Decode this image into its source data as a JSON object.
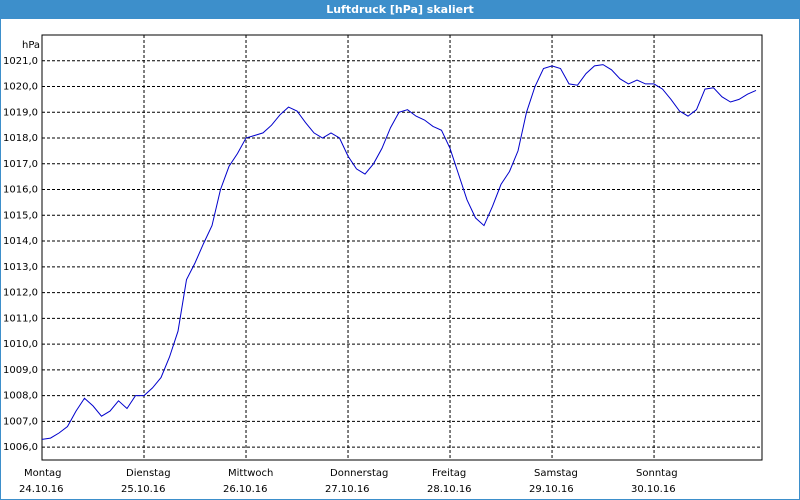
{
  "chart_data": {
    "type": "line",
    "title": "Luftdruck [hPa] skaliert",
    "y_label": "hPa",
    "x": [
      0,
      2,
      4,
      6,
      8,
      10,
      12,
      14,
      16,
      18,
      20,
      22,
      24,
      26,
      28,
      30,
      32,
      34,
      36,
      38,
      40,
      42,
      44,
      46,
      48,
      50,
      52,
      54,
      56,
      58,
      60,
      62,
      64,
      66,
      68,
      70,
      72,
      74,
      76,
      78,
      80,
      82,
      84,
      86,
      88,
      90,
      92,
      94,
      96,
      98,
      100,
      102,
      104,
      106,
      108,
      110,
      112,
      114,
      116,
      118,
      120,
      122,
      124,
      126,
      128,
      130,
      132,
      134,
      136,
      138,
      140,
      142,
      144,
      146,
      148,
      150,
      152,
      154,
      156,
      158,
      160,
      162,
      164,
      166,
      168
    ],
    "series": [
      {
        "name": "Luftdruck",
        "color": "#0000cc",
        "values": [
          1006.3,
          1006.35,
          1006.55,
          1006.8,
          1007.4,
          1007.9,
          1007.6,
          1007.2,
          1007.4,
          1007.8,
          1007.5,
          1008.0,
          1008.0,
          1008.3,
          1008.7,
          1009.5,
          1010.5,
          1012.5,
          1013.15,
          1013.9,
          1014.6,
          1016.0,
          1016.9,
          1017.4,
          1018.0,
          1018.1,
          1018.2,
          1018.5,
          1018.9,
          1019.2,
          1019.05,
          1018.6,
          1018.2,
          1018.0,
          1018.2,
          1018.0,
          1017.3,
          1016.8,
          1016.6,
          1017.0,
          1017.6,
          1018.4,
          1019.0,
          1019.1,
          1018.85,
          1018.7,
          1018.45,
          1018.3,
          1017.6,
          1016.6,
          1015.6,
          1014.9,
          1014.6,
          1015.35,
          1016.2,
          1016.7,
          1017.5,
          1019.0,
          1020.0,
          1020.7,
          1020.8,
          1020.7,
          1020.1,
          1020.05,
          1020.5,
          1020.8,
          1020.85,
          1020.65,
          1020.3,
          1020.1,
          1020.25,
          1020.1,
          1020.1,
          1019.9,
          1019.5,
          1019.05,
          1018.85,
          1019.1,
          1019.9,
          1019.95,
          1019.6,
          1019.4,
          1019.5,
          1019.7,
          1019.85
        ]
      }
    ],
    "xlim": [
      0,
      169.4
    ],
    "xticks": [
      {
        "value": 0,
        "label": [
          "Montag",
          "24.10.16"
        ]
      },
      {
        "value": 24,
        "label": [
          "Dienstag",
          "25.10.16"
        ]
      },
      {
        "value": 48,
        "label": [
          "Mittwoch",
          "26.10.16"
        ]
      },
      {
        "value": 72,
        "label": [
          "Donnerstag",
          "27.10.16"
        ]
      },
      {
        "value": 96,
        "label": [
          "Freitag",
          "28.10.16"
        ]
      },
      {
        "value": 120,
        "label": [
          "Samstag",
          "29.10.16"
        ]
      },
      {
        "value": 144,
        "label": [
          "Sonntag",
          "30.10.16"
        ]
      }
    ],
    "ylim": [
      1005.5,
      1022
    ],
    "yticks": [
      {
        "value": 1006,
        "label": "1006,0"
      },
      {
        "value": 1007,
        "label": "1007,0"
      },
      {
        "value": 1008,
        "label": "1008,0"
      },
      {
        "value": 1009,
        "label": "1009,0"
      },
      {
        "value": 1010,
        "label": "1010,0"
      },
      {
        "value": 1011,
        "label": "1011,0"
      },
      {
        "value": 1012,
        "label": "1012,0"
      },
      {
        "value": 1013,
        "label": "1013,0"
      },
      {
        "value": 1014,
        "label": "1014,0"
      },
      {
        "value": 1015,
        "label": "1015,0"
      },
      {
        "value": 1016,
        "label": "1016,0"
      },
      {
        "value": 1017,
        "label": "1017,0"
      },
      {
        "value": 1018,
        "label": "1018,0"
      },
      {
        "value": 1019,
        "label": "1019,0"
      },
      {
        "value": 1020,
        "label": "1020,0"
      },
      {
        "value": 1021,
        "label": "1021,0"
      }
    ],
    "grid": true
  }
}
